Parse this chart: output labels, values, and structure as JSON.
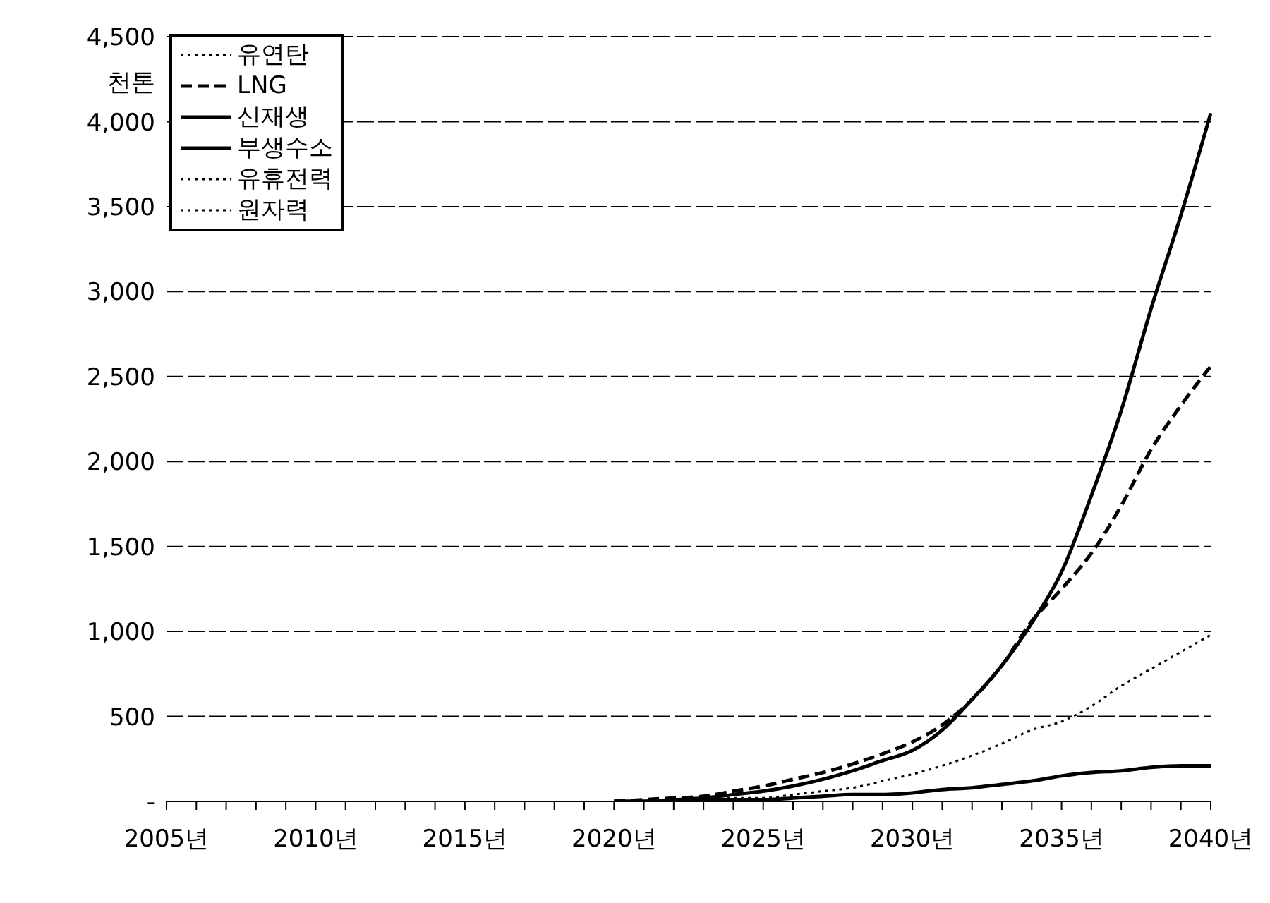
{
  "chart_data": {
    "type": "line",
    "ylabel": "천톤",
    "categories": [
      "2005년",
      null,
      null,
      null,
      null,
      "2010년",
      null,
      null,
      null,
      null,
      "2015년",
      null,
      null,
      null,
      null,
      "2020년",
      null,
      null,
      null,
      null,
      "2025년",
      null,
      null,
      null,
      null,
      "2030년",
      null,
      null,
      null,
      null,
      "2035년",
      null,
      null,
      null,
      null,
      "2040년"
    ],
    "series": [
      {
        "name": "유연탄",
        "color": "#000000",
        "line_style": "dotted",
        "values": [
          null,
          null,
          null,
          null,
          null,
          null,
          null,
          null,
          null,
          null,
          null,
          null,
          null,
          null,
          null,
          null,
          null,
          null,
          null,
          null,
          null,
          null,
          null,
          null,
          null,
          null,
          null,
          null,
          null,
          null,
          null,
          null,
          null,
          null,
          null,
          null
        ]
      },
      {
        "name": "LNG",
        "color": "#000000",
        "line_style": "dashed",
        "values": [
          null,
          null,
          null,
          null,
          null,
          null,
          null,
          null,
          null,
          null,
          null,
          null,
          null,
          null,
          null,
          0,
          10,
          20,
          30,
          60,
          90,
          130,
          170,
          220,
          280,
          350,
          450,
          600,
          800,
          1060,
          1250,
          1460,
          1740,
          2070,
          2330,
          2560
        ]
      },
      {
        "name": "신재생",
        "color": "#000000",
        "line_style": "solid",
        "values": [
          null,
          null,
          null,
          null,
          null,
          null,
          null,
          null,
          null,
          null,
          null,
          null,
          null,
          null,
          null,
          0,
          0,
          10,
          20,
          40,
          60,
          90,
          130,
          180,
          240,
          300,
          420,
          600,
          800,
          1050,
          1350,
          1800,
          2300,
          2900,
          3450,
          4050
        ]
      },
      {
        "name": "부생수소",
        "color": "#000000",
        "line_style": "solid",
        "values": [
          null,
          null,
          null,
          null,
          null,
          null,
          null,
          null,
          null,
          null,
          null,
          null,
          null,
          null,
          null,
          0,
          0,
          0,
          10,
          10,
          10,
          20,
          30,
          40,
          40,
          50,
          70,
          80,
          100,
          120,
          150,
          170,
          180,
          200,
          210,
          210
        ]
      },
      {
        "name": "유휴전력",
        "color": "#000000",
        "line_style": "dotted",
        "values": [
          null,
          null,
          null,
          null,
          null,
          null,
          null,
          null,
          null,
          null,
          null,
          null,
          null,
          null,
          null,
          0,
          0,
          10,
          10,
          20,
          20,
          40,
          60,
          80,
          120,
          160,
          210,
          270,
          340,
          420,
          470,
          560,
          680,
          780,
          880,
          980
        ]
      },
      {
        "name": "원자력",
        "color": "#000000",
        "line_style": "dotted",
        "values": [
          null,
          null,
          null,
          null,
          null,
          null,
          null,
          null,
          null,
          null,
          null,
          null,
          null,
          null,
          null,
          null,
          null,
          null,
          null,
          null,
          null,
          null,
          null,
          null,
          null,
          null,
          null,
          null,
          null,
          null,
          null,
          null,
          null,
          null,
          null,
          null
        ]
      }
    ],
    "ylim": [
      0,
      4500
    ],
    "yticks": [
      {
        "value": 0,
        "label": "-"
      },
      500,
      {
        "value": 1000,
        "label": "1,000"
      },
      {
        "value": 1500,
        "label": "1,500"
      },
      {
        "value": 2000,
        "label": "2,000"
      },
      {
        "value": 2500,
        "label": "2,500"
      },
      {
        "value": 3000,
        "label": "3,000"
      },
      {
        "value": 3500,
        "label": "3,500"
      },
      {
        "value": 4000,
        "label": "4,000"
      },
      {
        "value": 4500,
        "label": "4,500"
      }
    ],
    "grid": "y",
    "legend": "top left",
    "marker": "none"
  }
}
